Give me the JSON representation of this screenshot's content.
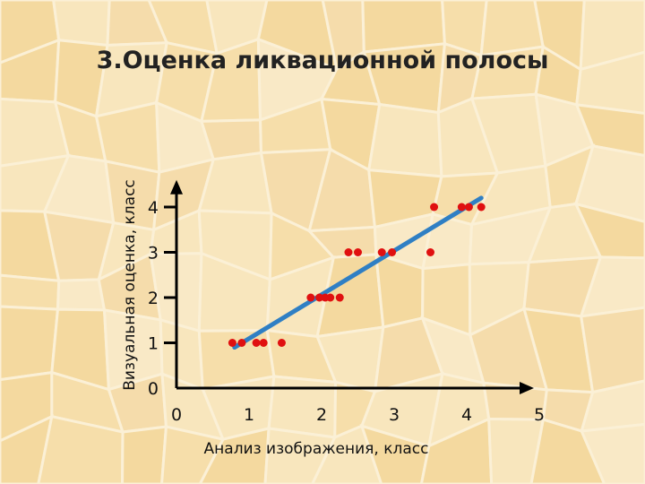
{
  "page": {
    "title": "3.Оценка ликвационной полосы"
  },
  "colors": {
    "background": "#f7e3b7",
    "cell_lines": "#fbf0d6",
    "axis": "#000000",
    "points": "#e01010",
    "fit_line": "#2f7fc4"
  },
  "chart_data": {
    "type": "scatter",
    "title": "3.Оценка ликвационной полосы",
    "xlabel": "Анализ изображения, класс",
    "ylabel": "Визуальная оценка, класс",
    "xlim": [
      0,
      5
    ],
    "ylim": [
      0,
      4.6
    ],
    "x_ticks": [
      "0",
      "1",
      "2",
      "3",
      "4",
      "5"
    ],
    "y_ticks": [
      "0",
      "1",
      "2",
      "3",
      "4"
    ],
    "grid": false,
    "series": [
      {
        "points": [
          [
            0.77,
            1
          ],
          [
            0.9,
            1
          ],
          [
            1.1,
            1
          ],
          [
            1.2,
            1
          ],
          [
            1.45,
            1
          ],
          [
            1.85,
            2
          ],
          [
            1.97,
            2
          ],
          [
            2.05,
            2
          ],
          [
            2.12,
            2
          ],
          [
            2.25,
            2
          ],
          [
            2.37,
            3
          ],
          [
            2.5,
            3
          ],
          [
            2.83,
            3
          ],
          [
            2.97,
            3
          ],
          [
            3.5,
            3
          ],
          [
            3.55,
            4
          ],
          [
            3.93,
            4
          ],
          [
            4.03,
            4
          ],
          [
            4.2,
            4
          ]
        ]
      }
    ],
    "trendline": {
      "x": [
        0.8,
        4.2
      ],
      "y": [
        0.9,
        4.2
      ]
    }
  }
}
